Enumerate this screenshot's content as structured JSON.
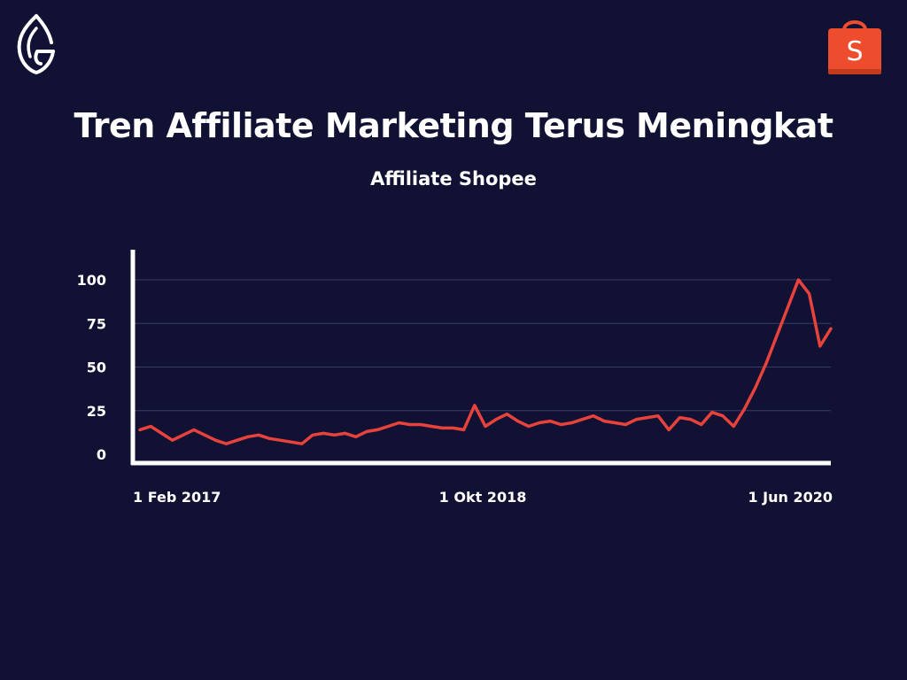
{
  "header": {
    "title": "Tren Affiliate Marketing Terus Meningkat",
    "subtitle": "Affiliate Shopee",
    "brand_logo_icon": "leaf-g-logo-icon",
    "shopee_icon": "shopee-bag-icon",
    "shopee_letter": "S"
  },
  "colors": {
    "background": "#111133",
    "line": "#e8423c",
    "axis": "#ffffff",
    "grid": "#3a3c66",
    "shopee": "#ee4d2d"
  },
  "chart_data": {
    "type": "line",
    "title": "Affiliate Shopee",
    "xlabel": "",
    "ylabel": "",
    "ylim": [
      0,
      100
    ],
    "yticks": [
      0,
      25,
      50,
      75,
      100
    ],
    "ytick_labels": [
      "0",
      "25",
      "50",
      "75",
      "100"
    ],
    "xtick_labels": [
      "1 Feb 2017",
      "1 Okt 2018",
      "1 Jun 2020"
    ],
    "grid": true,
    "series": [
      {
        "values": [
          14,
          16,
          12,
          8,
          11,
          14,
          11,
          8,
          6,
          8,
          10,
          11,
          9,
          8,
          7,
          6,
          11,
          12,
          11,
          12,
          10,
          13,
          14,
          16,
          18,
          17,
          17,
          16,
          15,
          15,
          14,
          28,
          16,
          20,
          23,
          19,
          16,
          18,
          19,
          17,
          18,
          20,
          22,
          19,
          18,
          17,
          20,
          21,
          22,
          14,
          21,
          20,
          17,
          24,
          22,
          16,
          26,
          38,
          52,
          68,
          84,
          100,
          92,
          62,
          72
        ]
      }
    ]
  }
}
